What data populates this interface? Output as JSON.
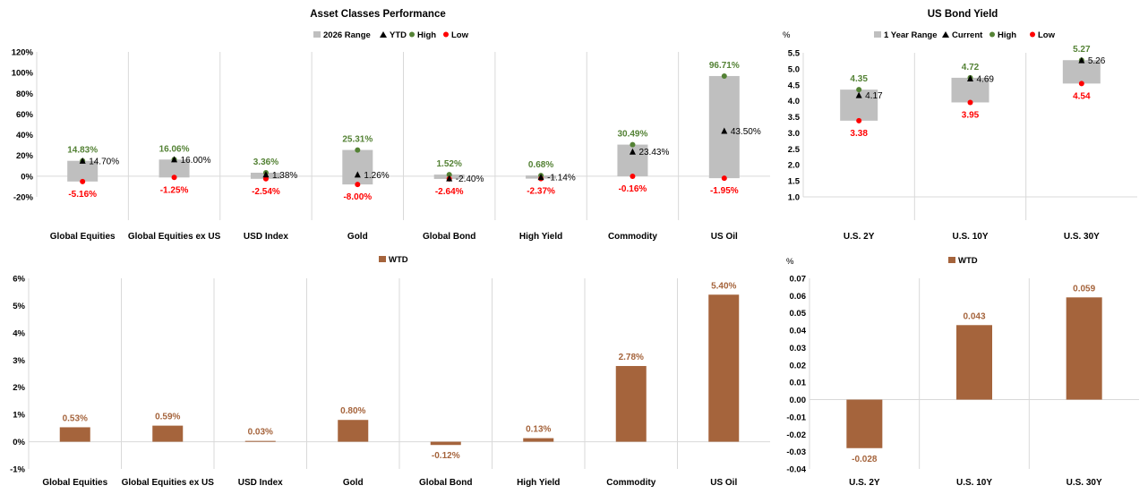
{
  "chart_data": [
    {
      "type": "range",
      "title": "Asset Classes Performance",
      "legend": {
        "range": "2026 Range",
        "current": "YTD",
        "high": "High",
        "low": "Low"
      },
      "ylim": [
        -20,
        120
      ],
      "yticks": [
        "-20%",
        "0%",
        "20%",
        "40%",
        "60%",
        "80%",
        "100%",
        "120%"
      ],
      "categories": [
        "Global Equities",
        "Global Equities ex US",
        "USD Index",
        "Gold",
        "Global Bond",
        "High Yield",
        "Commodity",
        "US Oil"
      ],
      "high": [
        14.83,
        16.06,
        3.36,
        25.31,
        1.52,
        0.68,
        30.49,
        96.71
      ],
      "low": [
        -5.16,
        -1.25,
        -2.54,
        -8.0,
        -2.64,
        -2.37,
        -0.16,
        -1.95
      ],
      "current": [
        14.7,
        16.0,
        1.38,
        1.26,
        -2.4,
        -1.14,
        23.43,
        43.5
      ],
      "high_labels": [
        "14.83%",
        "16.06%",
        "3.36%",
        "25.31%",
        "1.52%",
        "0.68%",
        "30.49%",
        "96.71%"
      ],
      "low_labels": [
        "-5.16%",
        "-1.25%",
        "-2.54%",
        "-8.00%",
        "-2.64%",
        "-2.37%",
        "-0.16%",
        "-1.95%"
      ],
      "current_labels": [
        "14.70%",
        "16.00%",
        "1.38%",
        "1.26%",
        "-2.40%",
        "-1.14%",
        "23.43%",
        "43.50%"
      ]
    },
    {
      "type": "range",
      "title": "US Bond Yield",
      "ylabel": "%",
      "legend": {
        "range": "1 Year Range",
        "current": "Current",
        "high": "High",
        "low": "Low"
      },
      "ylim": [
        1.0,
        5.5
      ],
      "yticks": [
        "1.0",
        "1.5",
        "2.0",
        "2.5",
        "3.0",
        "3.5",
        "4.0",
        "4.5",
        "5.0",
        "5.5"
      ],
      "categories": [
        "U.S. 2Y",
        "U.S. 10Y",
        "U.S. 30Y"
      ],
      "high": [
        4.35,
        4.72,
        5.27
      ],
      "low": [
        3.38,
        3.95,
        4.54
      ],
      "current": [
        4.17,
        4.69,
        5.26
      ],
      "high_labels": [
        "4.35",
        "4.72",
        "5.27"
      ],
      "low_labels": [
        "3.38",
        "3.95",
        "4.54"
      ],
      "current_labels": [
        "4.17",
        "4.69",
        "5.26"
      ]
    },
    {
      "type": "bar",
      "legend": {
        "series": "WTD"
      },
      "ylim": [
        -1,
        6
      ],
      "yticks": [
        "-1%",
        "0%",
        "1%",
        "2%",
        "3%",
        "4%",
        "5%",
        "6%"
      ],
      "categories": [
        "Global Equities",
        "Global Equities ex US",
        "USD Index",
        "Gold",
        "Global Bond",
        "High Yield",
        "Commodity",
        "US Oil"
      ],
      "values": [
        0.53,
        0.59,
        0.03,
        0.8,
        -0.12,
        0.13,
        2.78,
        5.4
      ],
      "labels": [
        "0.53%",
        "0.59%",
        "0.03%",
        "0.80%",
        "-0.12%",
        "0.13%",
        "2.78%",
        "5.40%"
      ]
    },
    {
      "type": "bar",
      "ylabel": "%",
      "legend": {
        "series": "WTD"
      },
      "ylim": [
        -0.04,
        0.07
      ],
      "yticks": [
        "-0.04",
        "-0.03",
        "-0.02",
        "-0.01",
        "0.00",
        "0.01",
        "0.02",
        "0.03",
        "0.04",
        "0.05",
        "0.06",
        "0.07"
      ],
      "categories": [
        "U.S. 2Y",
        "U.S. 10Y",
        "U.S. 30Y"
      ],
      "values": [
        -0.028,
        0.043,
        0.059
      ],
      "labels": [
        "-0.028",
        "0.043",
        "0.059"
      ]
    }
  ],
  "colors": {
    "range": "#bfbfbf",
    "high": "#548235",
    "low": "#ff0000",
    "current": "#000000",
    "bar": "#a5643c",
    "grid": "#d9d9d9",
    "axis": "#000000"
  }
}
